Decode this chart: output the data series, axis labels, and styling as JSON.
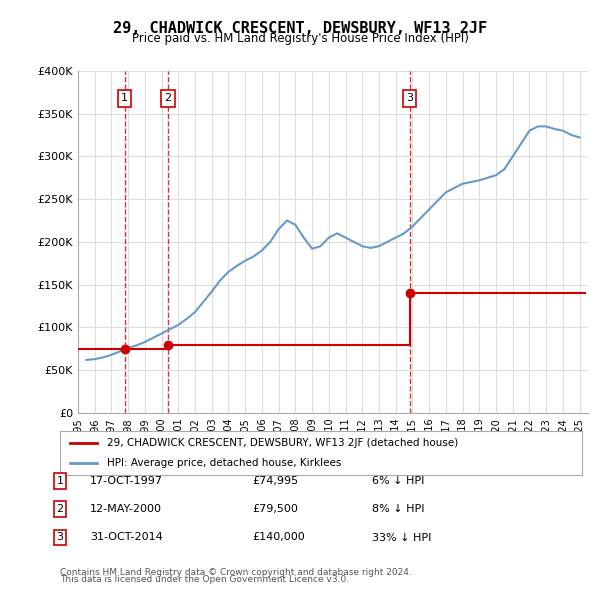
{
  "title": "29, CHADWICK CRESCENT, DEWSBURY, WF13 2JF",
  "subtitle": "Price paid vs. HM Land Registry's House Price Index (HPI)",
  "title_fontsize": 11,
  "subtitle_fontsize": 9,
  "background_color": "#ffffff",
  "plot_bg_color": "#ffffff",
  "grid_color": "#dddddd",
  "sale_events": [
    {
      "num": 1,
      "date_str": "17-OCT-1997",
      "year": 1997.79,
      "price": 74995,
      "label": "17-OCT-1997",
      "price_label": "£74,995",
      "pct_label": "6% ↓ HPI"
    },
    {
      "num": 2,
      "date_str": "12-MAY-2000",
      "year": 2000.36,
      "price": 79500,
      "label": "12-MAY-2000",
      "price_label": "£79,500",
      "pct_label": "8% ↓ HPI"
    },
    {
      "num": 3,
      "date_str": "31-OCT-2014",
      "year": 2014.83,
      "price": 140000,
      "label": "31-OCT-2014",
      "price_label": "£140,000",
      "pct_label": "33% ↓ HPI"
    }
  ],
  "hpi_line_color": "#6699cc",
  "sale_line_color": "#cc0000",
  "vline_color": "#cc0000",
  "marker_color": "#cc0000",
  "box_color": "#cc0000",
  "ylim": [
    0,
    400000
  ],
  "xlim_start": 1995.0,
  "xlim_end": 2025.5,
  "yticks": [
    0,
    50000,
    100000,
    150000,
    200000,
    250000,
    300000,
    350000,
    400000
  ],
  "ytick_labels": [
    "£0",
    "£50K",
    "£100K",
    "£150K",
    "£200K",
    "£250K",
    "£300K",
    "£350K",
    "£400K"
  ],
  "xtick_years": [
    1995,
    1996,
    1997,
    1998,
    1999,
    2000,
    2001,
    2002,
    2003,
    2004,
    2005,
    2006,
    2007,
    2008,
    2009,
    2010,
    2011,
    2012,
    2013,
    2014,
    2015,
    2016,
    2017,
    2018,
    2019,
    2020,
    2021,
    2022,
    2023,
    2024,
    2025
  ],
  "legend_label_red": "29, CHADWICK CRESCENT, DEWSBURY, WF13 2JF (detached house)",
  "legend_label_blue": "HPI: Average price, detached house, Kirklees",
  "footer1": "Contains HM Land Registry data © Crown copyright and database right 2024.",
  "footer2": "This data is licensed under the Open Government Licence v3.0.",
  "hpi_data": {
    "years": [
      1995.5,
      1996.0,
      1996.5,
      1997.0,
      1997.5,
      1998.0,
      1998.5,
      1999.0,
      1999.5,
      2000.0,
      2000.5,
      2001.0,
      2001.5,
      2002.0,
      2002.5,
      2003.0,
      2003.5,
      2004.0,
      2004.5,
      2005.0,
      2005.5,
      2006.0,
      2006.5,
      2007.0,
      2007.5,
      2008.0,
      2008.5,
      2009.0,
      2009.5,
      2010.0,
      2010.5,
      2011.0,
      2011.5,
      2012.0,
      2012.5,
      2013.0,
      2013.5,
      2014.0,
      2014.5,
      2015.0,
      2015.5,
      2016.0,
      2016.5,
      2017.0,
      2017.5,
      2018.0,
      2018.5,
      2019.0,
      2019.5,
      2020.0,
      2020.5,
      2021.0,
      2021.5,
      2022.0,
      2022.5,
      2023.0,
      2023.5,
      2024.0,
      2024.5,
      2025.0
    ],
    "values": [
      62000,
      63000,
      65000,
      68000,
      72000,
      76000,
      79000,
      83000,
      88000,
      93000,
      98000,
      103000,
      110000,
      118000,
      130000,
      142000,
      155000,
      165000,
      172000,
      178000,
      183000,
      190000,
      200000,
      215000,
      225000,
      220000,
      205000,
      192000,
      195000,
      205000,
      210000,
      205000,
      200000,
      195000,
      193000,
      195000,
      200000,
      205000,
      210000,
      218000,
      228000,
      238000,
      248000,
      258000,
      263000,
      268000,
      270000,
      272000,
      275000,
      278000,
      285000,
      300000,
      315000,
      330000,
      335000,
      335000,
      332000,
      330000,
      325000,
      322000
    ]
  },
  "sale_price_line": {
    "years": [
      1995.5,
      1997.79,
      1997.79,
      2000.36,
      2000.36,
      2014.83,
      2014.83,
      2025.0
    ],
    "values": [
      74995,
      74995,
      74995,
      74995,
      79500,
      79500,
      140000,
      140000
    ]
  }
}
